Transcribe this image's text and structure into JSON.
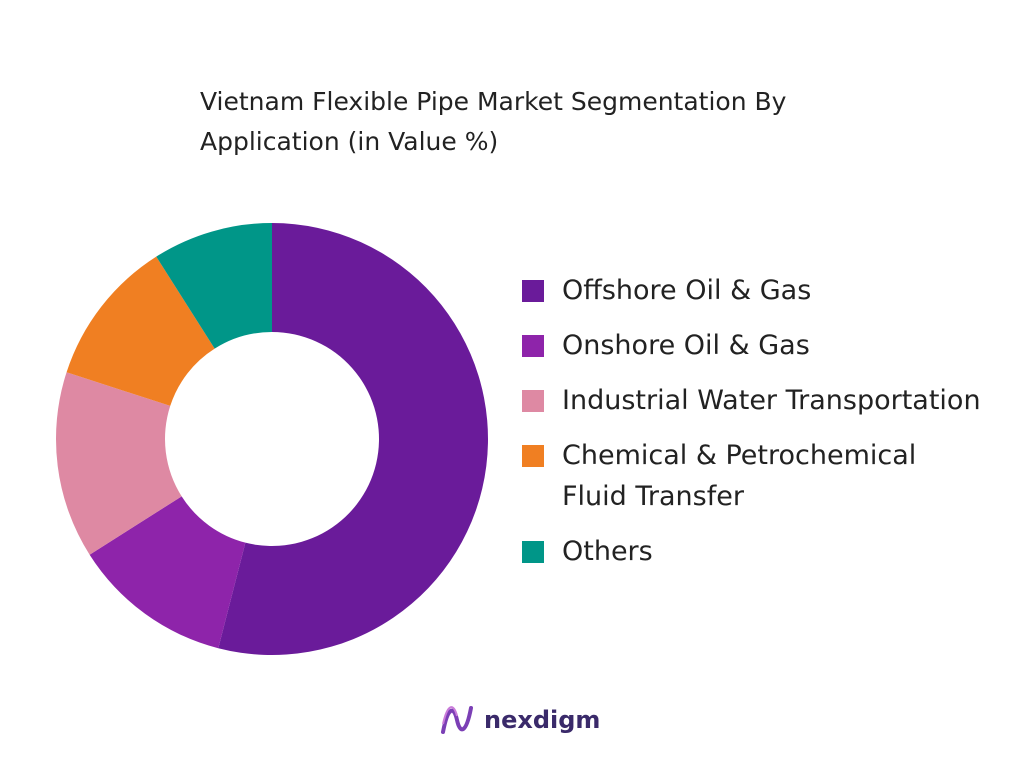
{
  "chart_data": {
    "type": "donut",
    "title": "Vietnam Flexible Pipe Market Segmentation By Application (in Value %)",
    "categories": [
      "Offshore Oil & Gas",
      "Onshore Oil & Gas",
      "Industrial Water Transportation",
      "Chemical & Petrochemical Fluid Transfer",
      "Others"
    ],
    "values": [
      54,
      12,
      14,
      11,
      9
    ],
    "colors": [
      "#6a1b9a",
      "#8e24aa",
      "#de89a3",
      "#f07f22",
      "#009688"
    ],
    "legend": "right"
  },
  "logo": "nexdigm"
}
